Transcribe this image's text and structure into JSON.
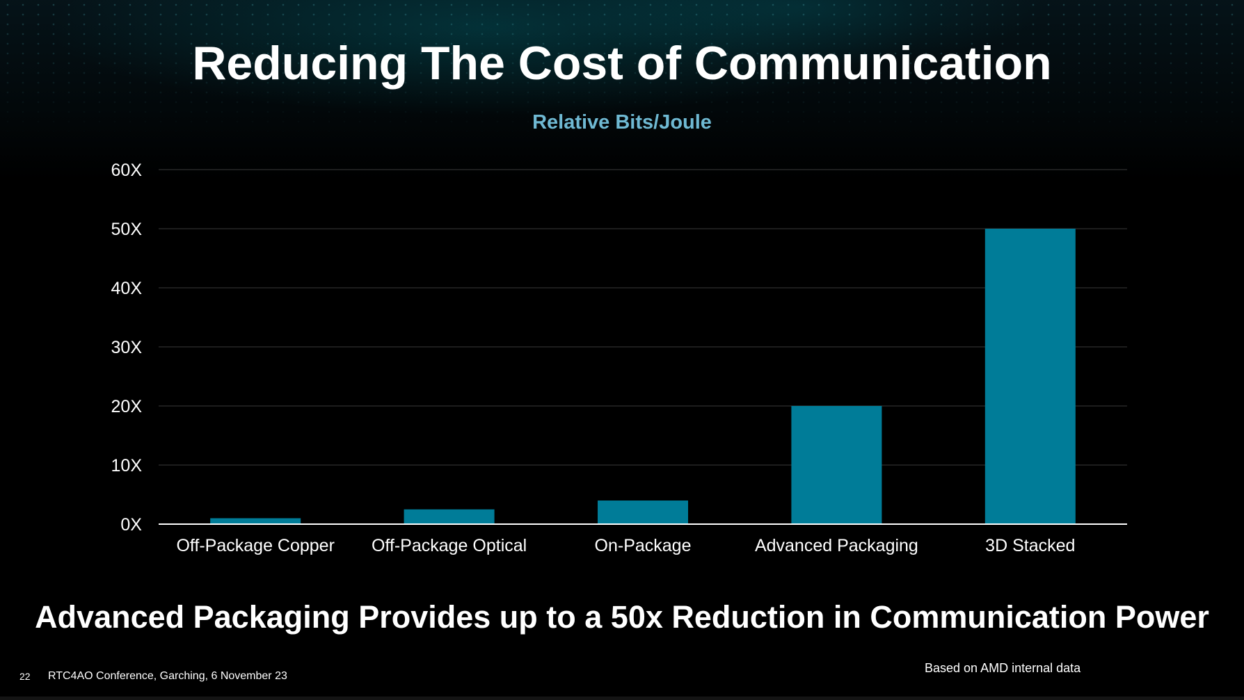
{
  "slide": {
    "title": "Reducing The Cost of Communication",
    "headline": "Advanced Packaging Provides up to a 50x Reduction in Communication Power",
    "source_note": "Based on AMD internal data",
    "page_number": "22",
    "footer": "RTC4AO Conference, Garching, 6 November 23"
  },
  "colors": {
    "bar": "#007c98",
    "grid": "#3a3a3a",
    "axis": "#ffffff",
    "chart_title": "#6fb9d3"
  },
  "chart_data": {
    "type": "bar",
    "title": "Relative Bits/Joule",
    "categories": [
      "Off-Package Copper",
      "Off-Package Optical",
      "On-Package",
      "Advanced Packaging",
      "3D Stacked"
    ],
    "values": [
      1,
      2.5,
      4,
      20,
      50
    ],
    "ylim": [
      0,
      60
    ],
    "yticks": [
      0,
      10,
      20,
      30,
      40,
      50,
      60
    ],
    "ytick_labels": [
      "0X",
      "10X",
      "20X",
      "30X",
      "40X",
      "50X",
      "60X"
    ],
    "xlabel": "",
    "ylabel": "",
    "grid": true,
    "legend": "none"
  }
}
